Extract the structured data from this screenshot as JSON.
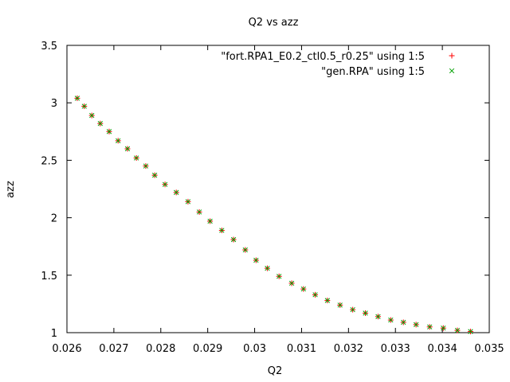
{
  "chart_data": {
    "type": "scatter",
    "title": "Q2 vs azz",
    "xlabel": "Q2",
    "ylabel": "azz",
    "xlim": [
      0.026,
      0.035
    ],
    "ylim": [
      1,
      3.5
    ],
    "xticks": [
      0.026,
      0.027,
      0.028,
      0.029,
      0.03,
      0.031,
      0.032,
      0.033,
      0.034,
      0.035
    ],
    "xtick_labels": [
      "0.026",
      "0.027",
      "0.028",
      "0.029",
      "0.03",
      "0.031",
      "0.032",
      "0.033",
      "0.034",
      "0.035"
    ],
    "yticks": [
      1,
      1.5,
      2,
      2.5,
      3,
      3.5
    ],
    "ytick_labels": [
      "1",
      "1.5",
      "2",
      "2.5",
      "3",
      "3.5"
    ],
    "grid": false,
    "legend_position": "top-right",
    "series": [
      {
        "name": "\"fort.RPA1_E0.2_ctl0.5_r0.25\" using 1:5",
        "marker": "plus",
        "color": "#ff0000",
        "x": [
          0.02622,
          0.02637,
          0.02653,
          0.02671,
          0.0269,
          0.02709,
          0.02729,
          0.02748,
          0.02768,
          0.02787,
          0.02809,
          0.02833,
          0.02858,
          0.02882,
          0.02905,
          0.0293,
          0.02955,
          0.0298,
          0.03003,
          0.03027,
          0.03052,
          0.03079,
          0.03104,
          0.03129,
          0.03155,
          0.03182,
          0.03209,
          0.03236,
          0.03263,
          0.0329,
          0.03317,
          0.03344,
          0.03373,
          0.03402,
          0.03432,
          0.0346
        ],
        "y": [
          3.04,
          2.97,
          2.89,
          2.82,
          2.75,
          2.67,
          2.6,
          2.52,
          2.45,
          2.37,
          2.29,
          2.22,
          2.14,
          2.05,
          1.97,
          1.89,
          1.81,
          1.72,
          1.63,
          1.56,
          1.49,
          1.43,
          1.38,
          1.33,
          1.28,
          1.24,
          1.2,
          1.17,
          1.14,
          1.11,
          1.09,
          1.07,
          1.05,
          1.04,
          1.02,
          1.01
        ]
      },
      {
        "name": "\"gen.RPA\" using 1:5",
        "marker": "cross",
        "color": "#00a000",
        "x": [
          0.02622,
          0.02637,
          0.02653,
          0.02671,
          0.0269,
          0.02709,
          0.02729,
          0.02748,
          0.02768,
          0.02787,
          0.02809,
          0.02833,
          0.02858,
          0.02882,
          0.02905,
          0.0293,
          0.02955,
          0.0298,
          0.03003,
          0.03027,
          0.03052,
          0.03079,
          0.03104,
          0.03129,
          0.03155,
          0.03182,
          0.03209,
          0.03236,
          0.03263,
          0.0329,
          0.03317,
          0.03344,
          0.03373,
          0.03402,
          0.03432,
          0.0346
        ],
        "y": [
          3.04,
          2.97,
          2.89,
          2.82,
          2.75,
          2.67,
          2.6,
          2.52,
          2.45,
          2.37,
          2.29,
          2.22,
          2.14,
          2.05,
          1.97,
          1.89,
          1.81,
          1.72,
          1.63,
          1.56,
          1.49,
          1.43,
          1.38,
          1.33,
          1.28,
          1.24,
          1.2,
          1.17,
          1.14,
          1.11,
          1.09,
          1.07,
          1.05,
          1.04,
          1.02,
          1.01
        ]
      }
    ]
  }
}
